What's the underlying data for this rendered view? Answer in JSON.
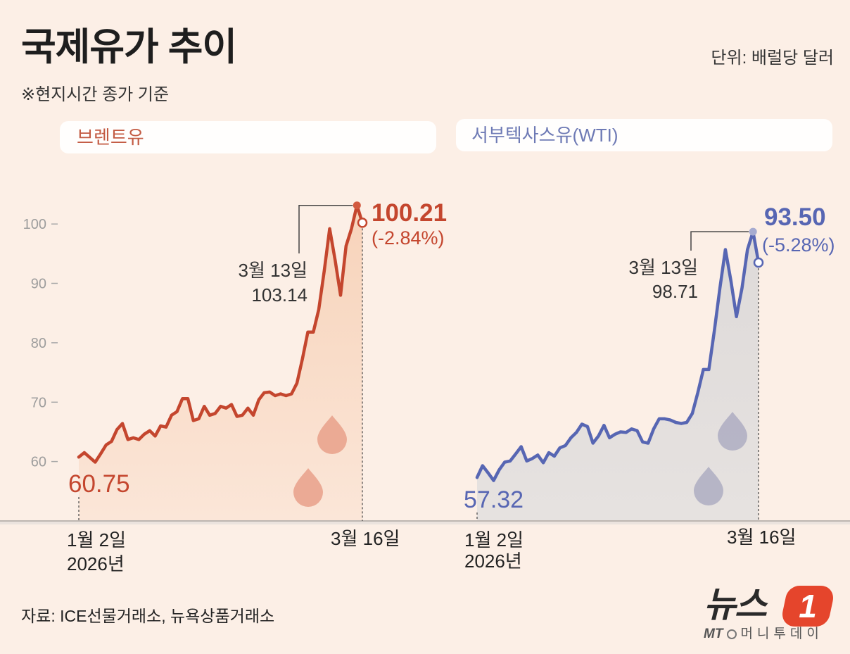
{
  "title": "국제유가 추이",
  "note": "※현지시간 종가 기준",
  "unit": "단위: 배럴당 달러",
  "source": "자료: ICE선물거래소, 뉴욕상품거래소",
  "logo": {
    "brand": "뉴스",
    "badge": "1",
    "group_mark": "MT",
    "group": "머니투데이",
    "badge_color": "#e5452c"
  },
  "colors": {
    "background": "#fcefe6",
    "annotation_line": "#444444"
  },
  "chart_data": [
    {
      "type": "area",
      "title": "브렌트유",
      "color": "#c4462e",
      "peak_color": "#d25a40",
      "fill_top": "#f7d3ba",
      "fill_bottom": "#fbe6d8",
      "drop_color": "#e7a08a",
      "ylim": [
        50,
        105
      ],
      "y_ticks": [
        60,
        70,
        80,
        90,
        100
      ],
      "values": [
        60.75,
        61.5,
        60.7,
        59.9,
        61.3,
        62.8,
        63.4,
        65.4,
        66.4,
        63.7,
        64.0,
        63.7,
        64.6,
        65.2,
        64.3,
        66.0,
        65.8,
        67.8,
        68.4,
        70.6,
        70.6,
        66.9,
        67.2,
        69.3,
        67.8,
        68.1,
        69.3,
        69.0,
        69.6,
        67.6,
        67.8,
        69.0,
        67.8,
        70.4,
        71.6,
        71.7,
        71.1,
        71.4,
        71.1,
        71.4,
        73.2,
        77.3,
        81.8,
        81.8,
        85.6,
        92.1,
        99.2,
        93.9,
        88.0,
        96.3,
        99.2,
        103.14,
        100.21
      ],
      "start": {
        "date": "1월 2일",
        "year": "2026년",
        "value": 60.75
      },
      "peak": {
        "date": "3월 13일",
        "value": 103.14
      },
      "end": {
        "date": "3월 16일",
        "value": 100.21,
        "change": "(-2.84%)"
      }
    },
    {
      "type": "area",
      "title": "서부텍사스유(WTI)",
      "color": "#5766b3",
      "peak_color": "#a6abd0",
      "fill_top": "#dedad9",
      "fill_bottom": "#e6e2e0",
      "drop_color": "#aeadc2",
      "ylim": [
        50,
        105
      ],
      "values": [
        57.32,
        59.3,
        58.1,
        56.8,
        58.6,
        59.9,
        60.1,
        61.3,
        62.5,
        60.1,
        60.5,
        61.1,
        59.8,
        61.5,
        60.9,
        62.3,
        62.7,
        64.0,
        64.9,
        66.3,
        65.9,
        63.1,
        64.3,
        66.1,
        64.0,
        64.6,
        65.0,
        64.9,
        65.5,
        65.2,
        63.3,
        63.1,
        65.5,
        67.2,
        67.2,
        67.0,
        66.6,
        66.4,
        66.6,
        68.1,
        71.6,
        75.5,
        75.5,
        82.1,
        89.2,
        95.7,
        90.4,
        84.4,
        89.2,
        95.7,
        98.71,
        93.5
      ],
      "start": {
        "date": "1월 2일",
        "year": "2026년",
        "value": 57.32
      },
      "peak": {
        "date": "3월 13일",
        "value": 98.71
      },
      "end": {
        "date": "3월 16일",
        "value": 93.5,
        "change": "(-5.28%)"
      }
    }
  ]
}
